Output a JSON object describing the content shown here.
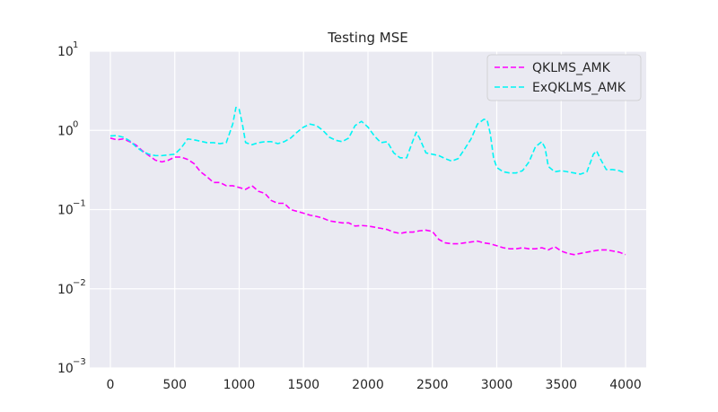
{
  "chart_data": {
    "type": "line",
    "title": "Testing MSE",
    "xlabel": "",
    "ylabel": "",
    "yscale": "log",
    "xlim": [
      -160,
      4160
    ],
    "ylim": [
      0.001,
      10
    ],
    "xticks": [
      0,
      500,
      1000,
      1500,
      2000,
      2500,
      3000,
      3500,
      4000
    ],
    "xtick_labels": [
      "0",
      "500",
      "1000",
      "1500",
      "2000",
      "2500",
      "3000",
      "3500",
      "4000"
    ],
    "yticks": [
      0.001,
      0.01,
      0.1,
      1,
      10
    ],
    "ytick_labels": [
      {
        "base": "10",
        "exp": "−3"
      },
      {
        "base": "10",
        "exp": "−2"
      },
      {
        "base": "10",
        "exp": "−1"
      },
      {
        "base": "10",
        "exp": "0"
      },
      {
        "base": "10",
        "exp": "1"
      }
    ],
    "grid": true,
    "legend_position": "top-right",
    "series": [
      {
        "name": "QKLMS_AMK",
        "color": "#ff00ff",
        "dash": "dashed",
        "points": [
          [
            0,
            0.8
          ],
          [
            50,
            0.76
          ],
          [
            100,
            0.78
          ],
          [
            150,
            0.72
          ],
          [
            200,
            0.65
          ],
          [
            250,
            0.55
          ],
          [
            300,
            0.48
          ],
          [
            350,
            0.42
          ],
          [
            400,
            0.4
          ],
          [
            450,
            0.42
          ],
          [
            500,
            0.46
          ],
          [
            550,
            0.46
          ],
          [
            600,
            0.43
          ],
          [
            650,
            0.38
          ],
          [
            700,
            0.3
          ],
          [
            750,
            0.26
          ],
          [
            800,
            0.22
          ],
          [
            850,
            0.22
          ],
          [
            900,
            0.2
          ],
          [
            950,
            0.2
          ],
          [
            1000,
            0.19
          ],
          [
            1050,
            0.18
          ],
          [
            1100,
            0.2
          ],
          [
            1150,
            0.17
          ],
          [
            1200,
            0.16
          ],
          [
            1250,
            0.13
          ],
          [
            1300,
            0.12
          ],
          [
            1350,
            0.12
          ],
          [
            1400,
            0.1
          ],
          [
            1450,
            0.095
          ],
          [
            1500,
            0.09
          ],
          [
            1550,
            0.085
          ],
          [
            1600,
            0.082
          ],
          [
            1650,
            0.078
          ],
          [
            1700,
            0.072
          ],
          [
            1750,
            0.07
          ],
          [
            1800,
            0.068
          ],
          [
            1850,
            0.068
          ],
          [
            1900,
            0.062
          ],
          [
            1950,
            0.063
          ],
          [
            2000,
            0.062
          ],
          [
            2050,
            0.06
          ],
          [
            2100,
            0.058
          ],
          [
            2150,
            0.056
          ],
          [
            2200,
            0.052
          ],
          [
            2250,
            0.05
          ],
          [
            2300,
            0.052
          ],
          [
            2350,
            0.052
          ],
          [
            2400,
            0.054
          ],
          [
            2450,
            0.055
          ],
          [
            2500,
            0.053
          ],
          [
            2550,
            0.042
          ],
          [
            2600,
            0.038
          ],
          [
            2650,
            0.037
          ],
          [
            2700,
            0.037
          ],
          [
            2750,
            0.038
          ],
          [
            2800,
            0.039
          ],
          [
            2850,
            0.04
          ],
          [
            2900,
            0.038
          ],
          [
            2950,
            0.037
          ],
          [
            3000,
            0.035
          ],
          [
            3050,
            0.033
          ],
          [
            3100,
            0.032
          ],
          [
            3150,
            0.032
          ],
          [
            3200,
            0.033
          ],
          [
            3250,
            0.032
          ],
          [
            3300,
            0.032
          ],
          [
            3350,
            0.033
          ],
          [
            3400,
            0.031
          ],
          [
            3450,
            0.034
          ],
          [
            3500,
            0.03
          ],
          [
            3550,
            0.028
          ],
          [
            3600,
            0.027
          ],
          [
            3650,
            0.028
          ],
          [
            3700,
            0.029
          ],
          [
            3750,
            0.03
          ],
          [
            3800,
            0.031
          ],
          [
            3850,
            0.031
          ],
          [
            3900,
            0.03
          ],
          [
            3950,
            0.029
          ],
          [
            4000,
            0.027
          ]
        ]
      },
      {
        "name": "ExQKLMS_AMK",
        "color": "#00f5f5",
        "dash": "dashed",
        "points": [
          [
            0,
            0.85
          ],
          [
            50,
            0.86
          ],
          [
            100,
            0.82
          ],
          [
            150,
            0.74
          ],
          [
            200,
            0.62
          ],
          [
            250,
            0.54
          ],
          [
            300,
            0.5
          ],
          [
            350,
            0.48
          ],
          [
            400,
            0.48
          ],
          [
            450,
            0.49
          ],
          [
            500,
            0.5
          ],
          [
            550,
            0.6
          ],
          [
            600,
            0.78
          ],
          [
            650,
            0.76
          ],
          [
            700,
            0.73
          ],
          [
            750,
            0.7
          ],
          [
            800,
            0.7
          ],
          [
            850,
            0.68
          ],
          [
            900,
            0.7
          ],
          [
            950,
            1.2
          ],
          [
            975,
            1.95
          ],
          [
            1000,
            1.85
          ],
          [
            1025,
            1.2
          ],
          [
            1050,
            0.7
          ],
          [
            1100,
            0.66
          ],
          [
            1150,
            0.7
          ],
          [
            1200,
            0.72
          ],
          [
            1250,
            0.72
          ],
          [
            1300,
            0.68
          ],
          [
            1350,
            0.72
          ],
          [
            1400,
            0.8
          ],
          [
            1450,
            0.95
          ],
          [
            1500,
            1.1
          ],
          [
            1550,
            1.2
          ],
          [
            1600,
            1.15
          ],
          [
            1650,
            1.0
          ],
          [
            1700,
            0.82
          ],
          [
            1750,
            0.75
          ],
          [
            1800,
            0.72
          ],
          [
            1850,
            0.8
          ],
          [
            1900,
            1.15
          ],
          [
            1950,
            1.3
          ],
          [
            2000,
            1.1
          ],
          [
            2050,
            0.85
          ],
          [
            2100,
            0.7
          ],
          [
            2150,
            0.72
          ],
          [
            2200,
            0.52
          ],
          [
            2250,
            0.45
          ],
          [
            2300,
            0.45
          ],
          [
            2350,
            0.75
          ],
          [
            2375,
            0.95
          ],
          [
            2400,
            0.8
          ],
          [
            2450,
            0.52
          ],
          [
            2500,
            0.5
          ],
          [
            2550,
            0.48
          ],
          [
            2600,
            0.44
          ],
          [
            2650,
            0.41
          ],
          [
            2700,
            0.44
          ],
          [
            2750,
            0.58
          ],
          [
            2800,
            0.78
          ],
          [
            2850,
            1.2
          ],
          [
            2900,
            1.38
          ],
          [
            2925,
            1.35
          ],
          [
            2950,
            0.9
          ],
          [
            2975,
            0.45
          ],
          [
            3000,
            0.34
          ],
          [
            3050,
            0.3
          ],
          [
            3100,
            0.29
          ],
          [
            3150,
            0.29
          ],
          [
            3200,
            0.31
          ],
          [
            3250,
            0.4
          ],
          [
            3300,
            0.62
          ],
          [
            3350,
            0.72
          ],
          [
            3375,
            0.6
          ],
          [
            3400,
            0.35
          ],
          [
            3450,
            0.3
          ],
          [
            3500,
            0.31
          ],
          [
            3550,
            0.3
          ],
          [
            3600,
            0.29
          ],
          [
            3650,
            0.28
          ],
          [
            3700,
            0.3
          ],
          [
            3750,
            0.5
          ],
          [
            3775,
            0.55
          ],
          [
            3800,
            0.45
          ],
          [
            3850,
            0.32
          ],
          [
            3900,
            0.32
          ],
          [
            3950,
            0.31
          ],
          [
            4000,
            0.29
          ]
        ]
      }
    ]
  }
}
